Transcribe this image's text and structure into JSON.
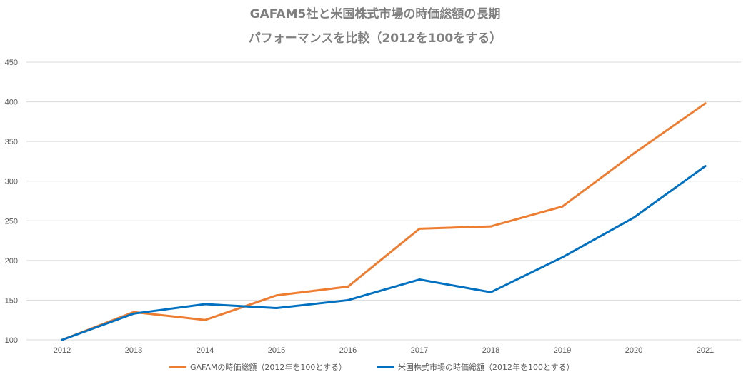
{
  "chart_data": {
    "type": "line",
    "title_lines": [
      "GAFAM5社と米国株式市場の時価総額の長期",
      "パフォーマンスを比較（2012を100をする）"
    ],
    "xlabel": "",
    "ylabel": "",
    "categories": [
      "2012",
      "2013",
      "2014",
      "2015",
      "2016",
      "2017",
      "2018",
      "2019",
      "2020",
      "2021"
    ],
    "ylim": [
      100,
      450
    ],
    "yticks": [
      100,
      150,
      200,
      250,
      300,
      350,
      400,
      450
    ],
    "grid": true,
    "legend_position": "bottom",
    "series": [
      {
        "name": "GAFAMの時価総額（2012年を100とする）",
        "color": "#ed7d31",
        "values": [
          100,
          135,
          125,
          156,
          167,
          240,
          243,
          268,
          335,
          398
        ]
      },
      {
        "name": "米国株式市場の時価総額（2012年を100とする）",
        "color": "#0070c0",
        "values": [
          100,
          133,
          145,
          140,
          150,
          176,
          160,
          204,
          254,
          319
        ]
      }
    ]
  }
}
